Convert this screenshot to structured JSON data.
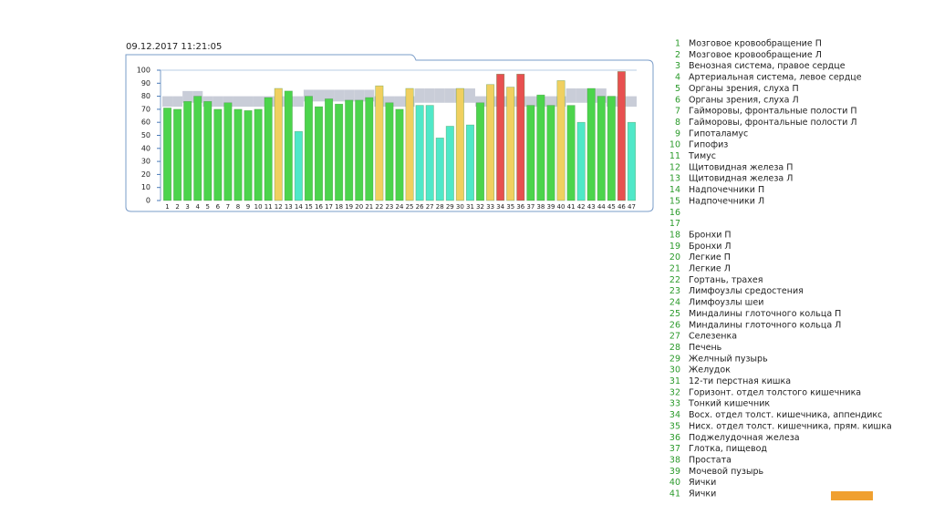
{
  "chart_data": {
    "type": "bar",
    "title": "09.12.2017   11:21:05",
    "categories": [
      "1",
      "2",
      "3",
      "4",
      "5",
      "6",
      "7",
      "8",
      "9",
      "10",
      "11",
      "12",
      "13",
      "14",
      "15",
      "16",
      "17",
      "18",
      "19",
      "20",
      "21",
      "22",
      "23",
      "24",
      "25",
      "26",
      "27",
      "28",
      "29",
      "30",
      "31",
      "32",
      "33",
      "34",
      "35",
      "36",
      "37",
      "38",
      "39",
      "40",
      "41",
      "42",
      "43",
      "44",
      "45",
      "46",
      "47"
    ],
    "values": [
      71,
      70,
      76,
      80,
      76,
      70,
      75,
      70,
      69,
      70,
      79,
      86,
      84,
      53,
      80,
      72,
      78,
      74,
      77,
      77,
      79,
      88,
      75,
      70,
      86,
      73,
      73,
      48,
      57,
      86,
      58,
      75,
      89,
      97,
      87,
      97,
      73,
      81,
      73,
      92,
      73,
      60,
      86,
      80,
      80,
      99,
      60
    ],
    "colors": [
      "#4cd44c",
      "#4cd44c",
      "#4cd44c",
      "#4cd44c",
      "#4cd44c",
      "#4cd44c",
      "#4cd44c",
      "#4cd44c",
      "#4cd44c",
      "#4cd44c",
      "#4cd44c",
      "#f0d060",
      "#4cd44c",
      "#50e8c8",
      "#4cd44c",
      "#4cd44c",
      "#4cd44c",
      "#4cd44c",
      "#4cd44c",
      "#4cd44c",
      "#4cd44c",
      "#f0d060",
      "#4cd44c",
      "#4cd44c",
      "#f0d060",
      "#50e8c8",
      "#50e8c8",
      "#50e8c8",
      "#50e8c8",
      "#f0d060",
      "#50e8c8",
      "#4cd44c",
      "#f0d060",
      "#e85050",
      "#f0d060",
      "#e85050",
      "#4cd44c",
      "#4cd44c",
      "#4cd44c",
      "#f0d060",
      "#4cd44c",
      "#50e8c8",
      "#4cd44c",
      "#4cd44c",
      "#4cd44c",
      "#e85050",
      "#50e8c8"
    ],
    "band_low": [
      72,
      72,
      75,
      75,
      72,
      72,
      72,
      72,
      72,
      72,
      72,
      72,
      72,
      72,
      76,
      76,
      76,
      76,
      76,
      76,
      76,
      72,
      72,
      72,
      72,
      75,
      75,
      75,
      75,
      75,
      75,
      72,
      72,
      72,
      72,
      72,
      72,
      72,
      72,
      72,
      75,
      75,
      75,
      75,
      72,
      72,
      72
    ],
    "band_high": [
      80,
      80,
      84,
      84,
      80,
      80,
      80,
      80,
      80,
      80,
      80,
      80,
      80,
      80,
      85,
      85,
      85,
      85,
      85,
      85,
      85,
      80,
      80,
      80,
      80,
      86,
      86,
      86,
      86,
      86,
      86,
      80,
      80,
      80,
      80,
      80,
      80,
      80,
      80,
      80,
      86,
      86,
      86,
      86,
      80,
      80,
      80
    ],
    "band_color": "#c9cdd8",
    "ylim": [
      0,
      100
    ],
    "yticks": [
      0,
      10,
      20,
      30,
      40,
      50,
      60,
      70,
      80,
      90,
      100
    ]
  },
  "list": [
    {
      "number": 1,
      "label": "Мозговое кровообращение П"
    },
    {
      "number": 2,
      "label": "Мозговое кровообращение Л"
    },
    {
      "number": 3,
      "label": "Венозная система, правое сердце"
    },
    {
      "number": 4,
      "label": "Артериальная система, левое сердце"
    },
    {
      "number": 5,
      "label": "Органы зрения, слуха П"
    },
    {
      "number": 6,
      "label": "Органы зрения, слуха Л"
    },
    {
      "number": 7,
      "label": "Гайморовы, фронтальные полости П"
    },
    {
      "number": 8,
      "label": "Гайморовы, фронтальные полости Л"
    },
    {
      "number": 9,
      "label": "Гипоталамус"
    },
    {
      "number": 10,
      "label": "Гипофиз"
    },
    {
      "number": 11,
      "label": "Тимус"
    },
    {
      "number": 12,
      "label": "Щитовидная железа П"
    },
    {
      "number": 13,
      "label": "Щитовидная железа Л"
    },
    {
      "number": 14,
      "label": "Надпочечники П"
    },
    {
      "number": 15,
      "label": "Надпочечники Л"
    },
    {
      "number": 16
    },
    {
      "number": 17
    },
    {
      "number": 18,
      "label": "Бронхи П"
    },
    {
      "number": 19,
      "label": "Бронхи Л"
    },
    {
      "number": 20,
      "label": "Легкие П"
    },
    {
      "number": 21,
      "label": "Легкие Л"
    },
    {
      "number": 22,
      "label": "Гортань, трахея"
    },
    {
      "number": 23,
      "label": "Лимфоузлы средостения"
    },
    {
      "number": 24,
      "label": "Лимфоузлы шеи"
    },
    {
      "number": 25,
      "label": "Миндалины глоточного кольца П"
    },
    {
      "number": 26,
      "label": "Миндалины глоточного кольца Л"
    },
    {
      "number": 27,
      "label": "Селезенка"
    },
    {
      "number": 28,
      "label": "Печень"
    },
    {
      "number": 29,
      "label": "Желчный пузырь"
    },
    {
      "number": 30,
      "label": "Желудок"
    },
    {
      "number": 31,
      "label": "12-ти перстная кишка"
    },
    {
      "number": 32,
      "label": "Горизонт. отдел толстого кишечника"
    },
    {
      "number": 33,
      "label": "Тонкий кишечник"
    },
    {
      "number": 34,
      "label": "Восх. отдел толст. кишечника, аппендикс"
    },
    {
      "number": 35,
      "label": "Нисх. отдел толст. кишечника, прям. кишка"
    },
    {
      "number": 36,
      "label": "Поджелудочная железа"
    },
    {
      "number": 37,
      "label": "Глотка, пищевод"
    },
    {
      "number": 38,
      "label": "Простата"
    },
    {
      "number": 39,
      "label": "Мочевой пузырь"
    },
    {
      "number": 40,
      "label": "Яички"
    },
    {
      "number": 41,
      "label": "Яички"
    }
  ]
}
